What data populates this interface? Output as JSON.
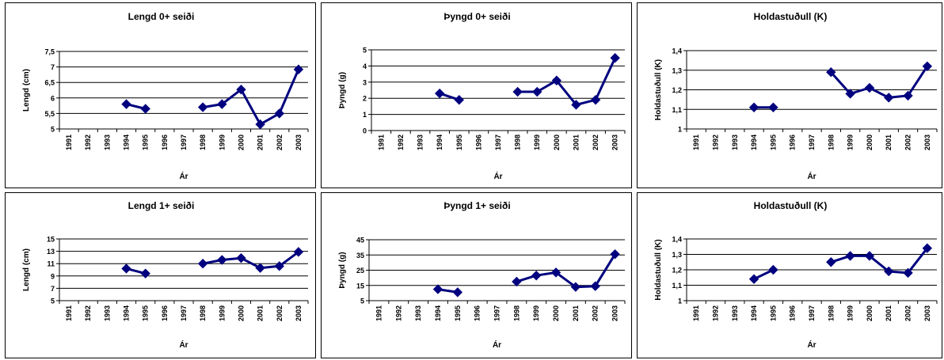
{
  "chart_data": [
    {
      "type": "line",
      "title": "Lengd 0+ seiði",
      "xlabel": "Ár",
      "ylabel": "Lengd (cm)",
      "categories": [
        "1991",
        "1992",
        "1993",
        "1994",
        "1995",
        "1996",
        "1997",
        "1998",
        "1999",
        "2000",
        "2001",
        "2002",
        "2003"
      ],
      "values": [
        null,
        null,
        null,
        5.8,
        5.65,
        null,
        null,
        5.7,
        5.8,
        6.27,
        5.15,
        5.5,
        6.92
      ],
      "ylim": [
        5,
        7.5
      ],
      "yticks": [
        "5",
        "5,5",
        "6",
        "6,5",
        "7",
        "7,5"
      ],
      "grid": true,
      "color": "#00007f"
    },
    {
      "type": "line",
      "title": "Þyngd 0+ seiði",
      "xlabel": "Ár",
      "ylabel": "Þyngd (g)",
      "categories": [
        "1991",
        "1992",
        "1993",
        "1994",
        "1995",
        "1996",
        "1997",
        "1998",
        "1999",
        "2000",
        "2001",
        "2002",
        "2003"
      ],
      "values": [
        null,
        null,
        null,
        2.3,
        1.9,
        null,
        null,
        2.4,
        2.4,
        3.1,
        1.6,
        1.9,
        4.5
      ],
      "ylim": [
        0,
        5
      ],
      "yticks": [
        "0",
        "1",
        "2",
        "3",
        "4",
        "5"
      ],
      "grid": true,
      "color": "#00007f"
    },
    {
      "type": "line",
      "title": "Holdastuðull (K)",
      "xlabel": "Ár",
      "ylabel": "Holdastuðull (K)",
      "categories": [
        "1991",
        "1992",
        "1993",
        "1994",
        "1995",
        "1996",
        "1997",
        "1998",
        "1999",
        "2000",
        "2001",
        "2002",
        "2003"
      ],
      "values": [
        null,
        null,
        null,
        1.11,
        1.11,
        null,
        null,
        1.29,
        1.18,
        1.21,
        1.16,
        1.17,
        1.32
      ],
      "ylim": [
        1,
        1.4
      ],
      "yticks": [
        "1",
        "1,1",
        "1,2",
        "1,3",
        "1,4"
      ],
      "grid": true,
      "color": "#00007f"
    },
    {
      "type": "line",
      "title": "Lengd 1+ seiði",
      "xlabel": "Ár",
      "ylabel": "Lengd (cm)",
      "categories": [
        "1991",
        "1992",
        "1993",
        "1994",
        "1995",
        "1996",
        "1997",
        "1998",
        "1999",
        "2000",
        "2001",
        "2002",
        "2003"
      ],
      "values": [
        null,
        null,
        null,
        10.2,
        9.4,
        null,
        null,
        11.0,
        11.6,
        11.9,
        10.3,
        10.6,
        12.9
      ],
      "ylim": [
        5,
        15
      ],
      "yticks": [
        "5",
        "7",
        "9",
        "11",
        "13",
        "15"
      ],
      "grid": true,
      "color": "#00007f"
    },
    {
      "type": "line",
      "title": "Þyngd 1+ seiði",
      "xlabel": "Ár",
      "ylabel": "Þyngd (g)",
      "categories": [
        "1991",
        "1992",
        "1993",
        "1994",
        "1995",
        "1996",
        "1997",
        "1998",
        "1999",
        "2000",
        "2001",
        "2002",
        "2003"
      ],
      "values": [
        null,
        null,
        null,
        12.5,
        10.5,
        null,
        null,
        17.5,
        21.5,
        23.5,
        14.0,
        14.5,
        35.5
      ],
      "ylim": [
        5,
        45
      ],
      "yticks": [
        "5",
        "15",
        "25",
        "35",
        "45"
      ],
      "grid": true,
      "color": "#00007f"
    },
    {
      "type": "line",
      "title": "Holdastuðull (K)",
      "xlabel": "Ár",
      "ylabel": "Holdastuðull (K)",
      "categories": [
        "1991",
        "1992",
        "1993",
        "1994",
        "1995",
        "1996",
        "1997",
        "1998",
        "1999",
        "2000",
        "2001",
        "2002",
        "2003"
      ],
      "values": [
        null,
        null,
        null,
        1.14,
        1.2,
        null,
        null,
        1.25,
        1.29,
        1.29,
        1.19,
        1.18,
        1.34
      ],
      "ylim": [
        1,
        1.4
      ],
      "yticks": [
        "1",
        "1,1",
        "1,2",
        "1,3",
        "1,4"
      ],
      "grid": true,
      "color": "#00007f"
    }
  ]
}
